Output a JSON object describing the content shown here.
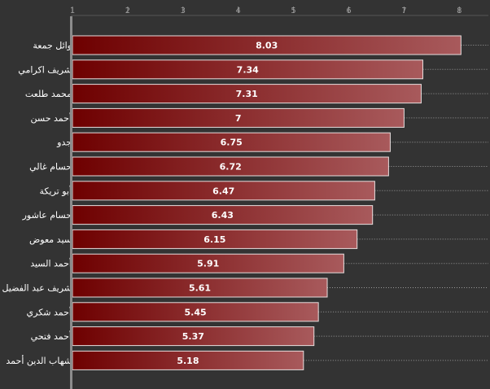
{
  "colors": {
    "background": "#333333",
    "bar_dark": "#6e0000",
    "bar_light": "#a85a5c",
    "bar_border": "#e8dede",
    "axis": "#8c8c8c",
    "grid": "#9a9a9a",
    "text": "#ffffff"
  },
  "chart_data": {
    "type": "bar",
    "orientation": "horizontal",
    "title": "",
    "xlabel": "",
    "ylabel": "",
    "xlim": [
      1,
      8.3
    ],
    "x_ticks": [
      1,
      2,
      3,
      4,
      5,
      6,
      7,
      8
    ],
    "grid": "dotted guide line from each bar end",
    "categories": [
      "وائل جمعة",
      "شريف اكرامي",
      "محمد طلعت",
      "أحمد حسن",
      "جدو",
      "حسام غالي",
      "أبو تريكة",
      "حسام عاشور",
      "سيد معوض",
      "أحمد السيد",
      "شريف عبد الفضيل",
      "أحمد شكري",
      "أحمد فتحي",
      "شهاب الدين أحمد"
    ],
    "values": [
      8.03,
      7.34,
      7.31,
      7,
      6.75,
      6.72,
      6.47,
      6.43,
      6.15,
      5.91,
      5.61,
      5.45,
      5.37,
      5.18
    ],
    "value_labels": [
      "8.03",
      "7.34",
      "7.31",
      "7",
      "6.75",
      "6.72",
      "6.47",
      "6.43",
      "6.15",
      "5.91",
      "5.61",
      "5.45",
      "5.37",
      "5.18"
    ]
  }
}
